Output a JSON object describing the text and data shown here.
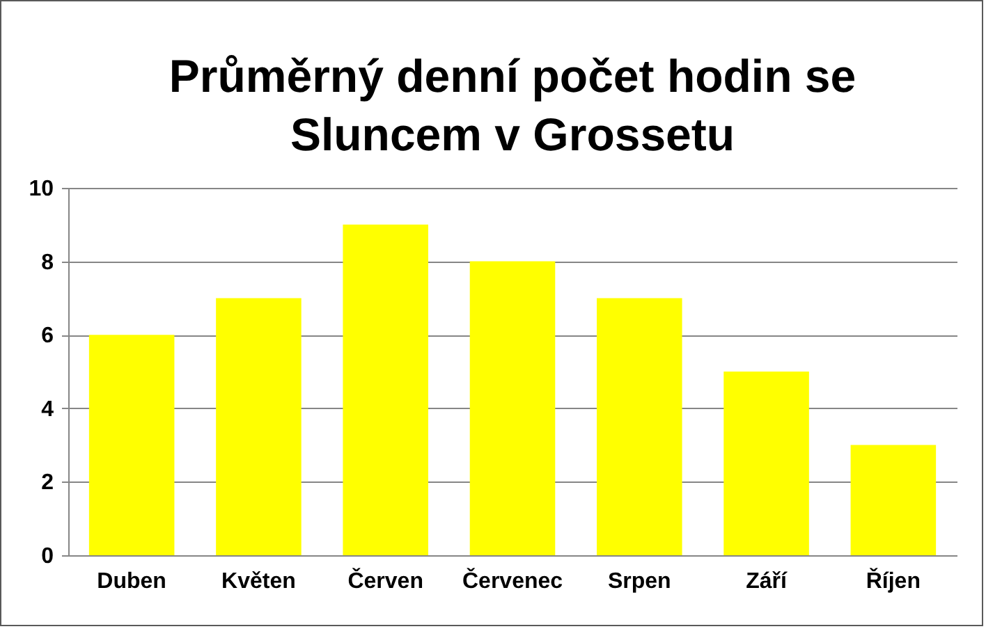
{
  "chart_data": {
    "type": "bar",
    "title": "Průměrný denní počet hodin se\nSluncem v Grossetu",
    "categories": [
      "Duben",
      "Květen",
      "Červen",
      "Červenec",
      "Srpen",
      "Září",
      "Říjen"
    ],
    "values": [
      6,
      7,
      9,
      8,
      7,
      5,
      3
    ],
    "color": "#ffff00",
    "ylim": [
      0,
      10
    ],
    "yticks": [
      0,
      2,
      4,
      6,
      8,
      10
    ],
    "grid": "y"
  }
}
